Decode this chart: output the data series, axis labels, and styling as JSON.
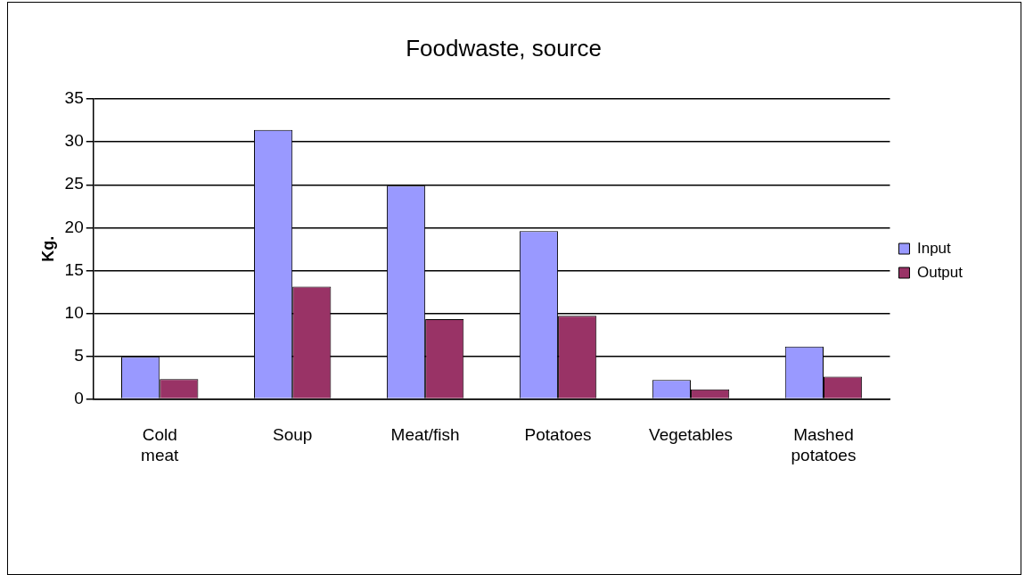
{
  "chart_data": {
    "type": "bar",
    "title": "Foodwaste, source",
    "ylabel": "Kg.",
    "categories": [
      "Cold meat",
      "Soup",
      "Meat/fish",
      "Potatoes",
      "Vegetables",
      "Mashed potatoes"
    ],
    "series": [
      {
        "name": "Input",
        "color": "#9999ff",
        "values": [
          4.9,
          31.4,
          24.9,
          19.6,
          2.2,
          6.1
        ]
      },
      {
        "name": "Output",
        "color": "#993366",
        "values": [
          2.3,
          13.1,
          9.3,
          9.7,
          1.1,
          2.6
        ]
      }
    ],
    "ylim": [
      0,
      35
    ],
    "yticks": [
      0,
      5,
      10,
      15,
      20,
      25,
      30,
      35
    ],
    "grid": "y",
    "legend": "right"
  }
}
